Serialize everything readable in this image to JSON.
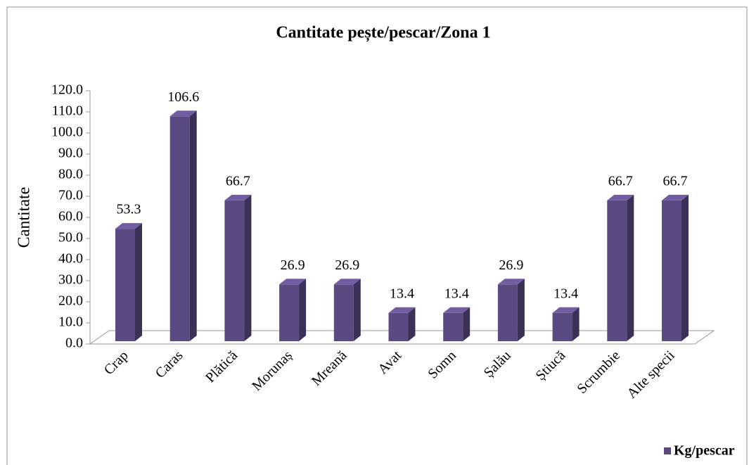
{
  "chart_data": {
    "type": "bar",
    "title": "Cantitate pește/pescar/Zona 1",
    "y_label": "Cantitate",
    "categories": [
      "Crap",
      "Caras",
      "Plătică",
      "Morunaș",
      "Mreană",
      "Avat",
      "Somn",
      "Șalău",
      "Știucă",
      "Scrumbie",
      "Alte specii"
    ],
    "series": [
      {
        "name": "Kg/pescar",
        "color": "#5b4a82",
        "values": [
          53.3,
          106.6,
          66.7,
          26.9,
          26.9,
          13.4,
          13.4,
          26.9,
          13.4,
          66.7,
          66.7
        ]
      }
    ],
    "ylim": [
      0,
      120
    ],
    "yticks": [
      {
        "value": 0,
        "label": "0.0"
      },
      {
        "value": 10,
        "label": "10.0"
      },
      {
        "value": 20,
        "label": "20.0"
      },
      {
        "value": 30,
        "label": "30.0"
      },
      {
        "value": 40,
        "label": "40.0"
      },
      {
        "value": 50,
        "label": "50.0"
      },
      {
        "value": 60,
        "label": "60.0"
      },
      {
        "value": 70,
        "label": "70.0"
      },
      {
        "value": 80,
        "label": "80.0"
      },
      {
        "value": 90,
        "label": "90.0"
      },
      {
        "value": 100,
        "label": "100.0"
      },
      {
        "value": 110,
        "label": "110.0"
      },
      {
        "value": 120,
        "label": "120.0"
      }
    ],
    "legend": "bottom-right"
  }
}
